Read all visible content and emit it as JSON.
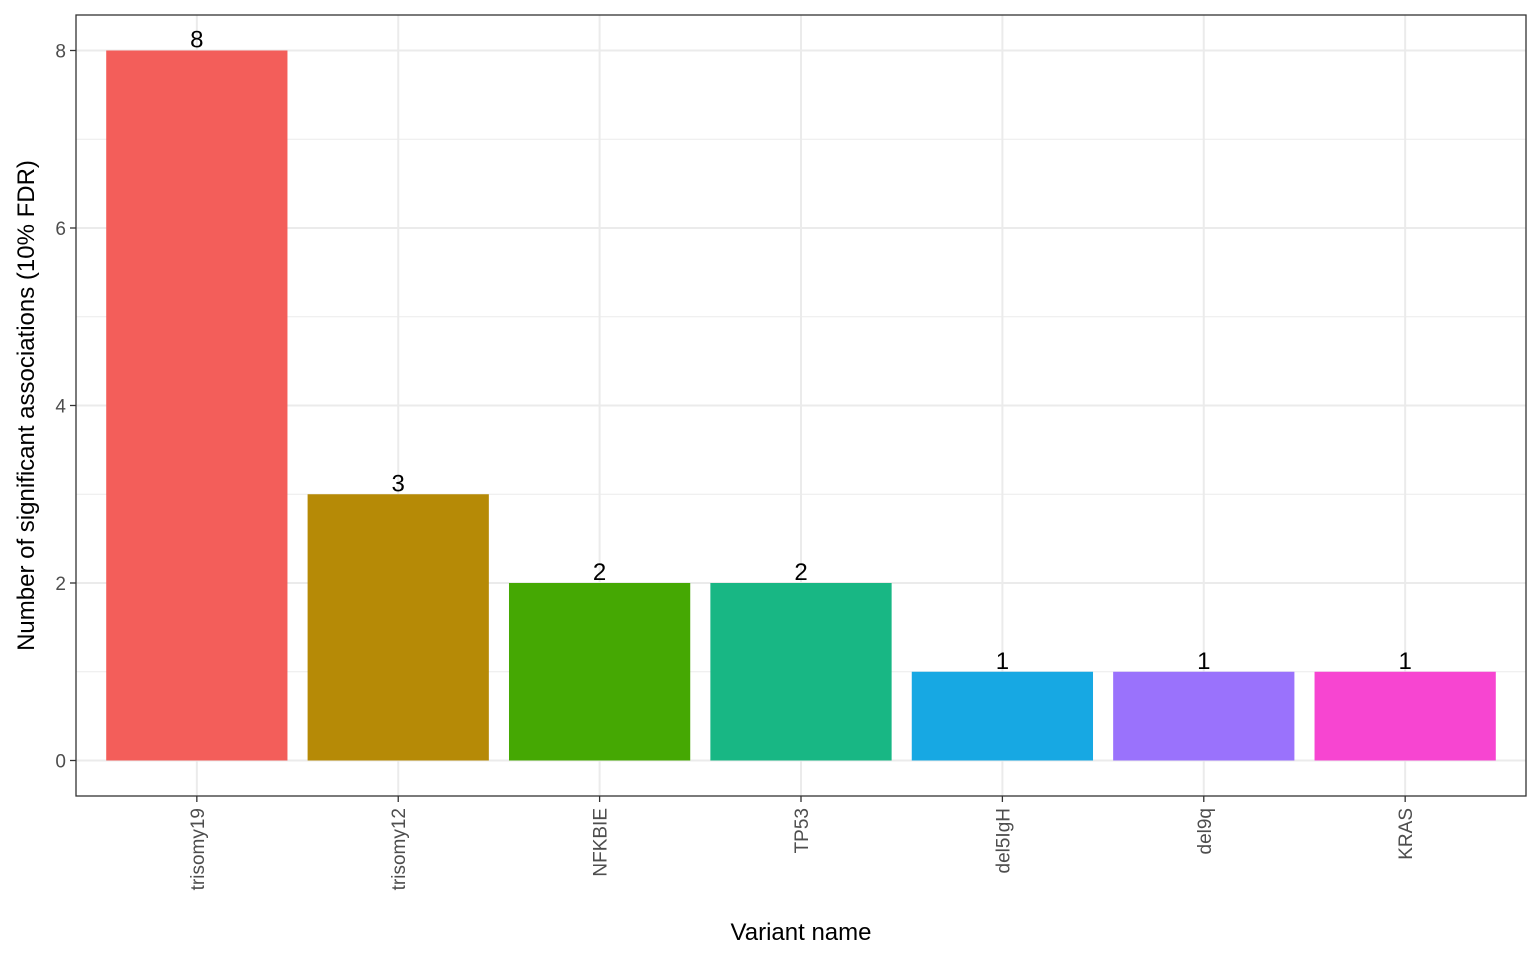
{
  "chart_data": {
    "type": "bar",
    "title": "",
    "xlabel": "Variant name",
    "ylabel": "Number of significant associations (10% FDR)",
    "categories": [
      "trisomy19",
      "trisomy12",
      "NFKBIE",
      "TP53",
      "del5IgH",
      "del9q",
      "KRAS"
    ],
    "values": [
      8,
      3,
      2,
      2,
      1,
      1,
      1
    ],
    "colors": [
      "#F35E5A",
      "#B68A06",
      "#45A803",
      "#18B784",
      "#17A8E3",
      "#9A72FC",
      "#F745D1"
    ],
    "yticks": [
      "0",
      "2",
      "4",
      "6",
      "8"
    ],
    "ylim": [
      -0.4,
      8.4
    ],
    "grid": true,
    "legend": "none"
  }
}
